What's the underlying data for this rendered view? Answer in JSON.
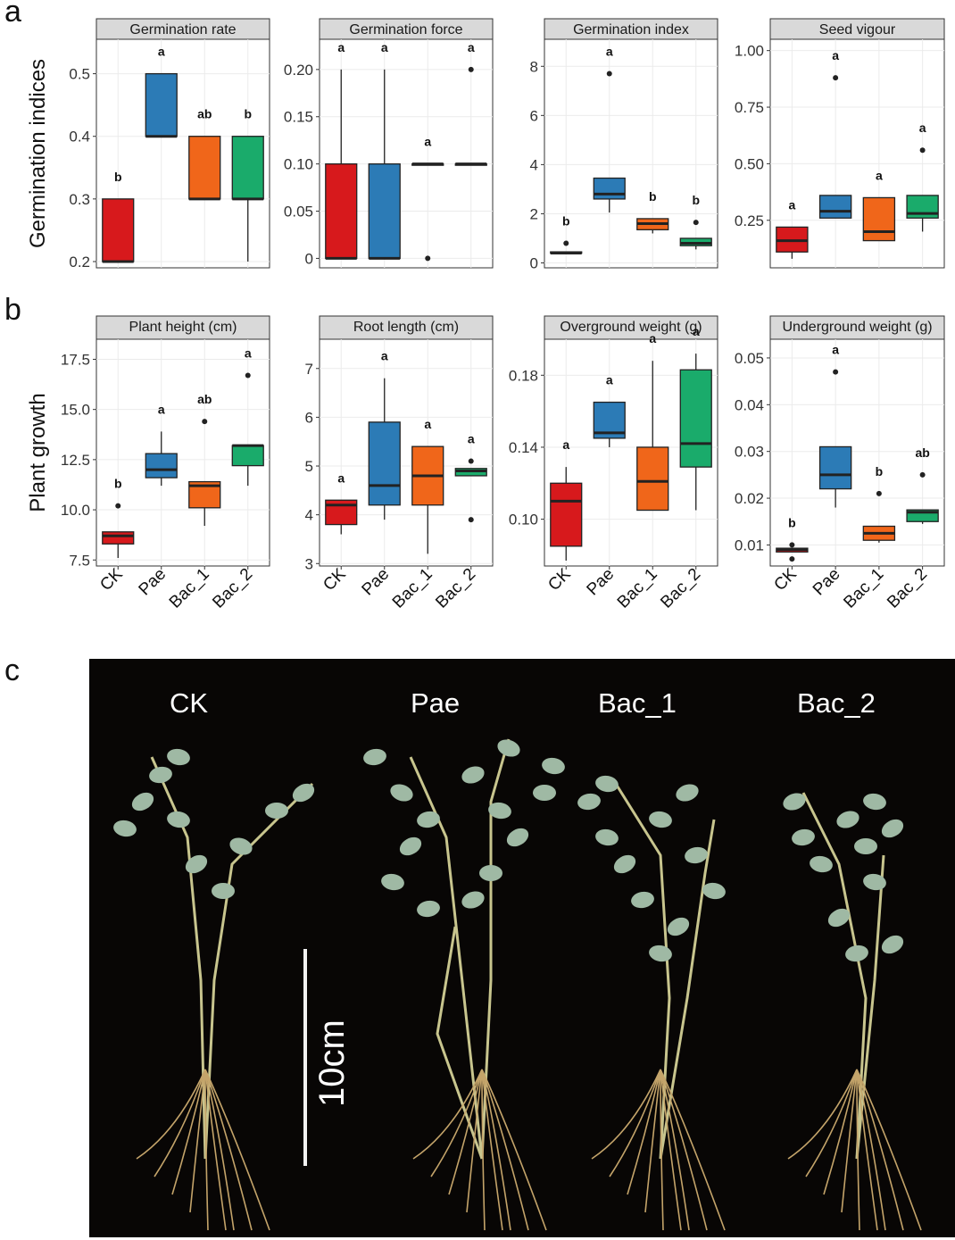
{
  "panels": {
    "a": "a",
    "b": "b",
    "c": "c"
  },
  "groups": [
    "CK",
    "Pae",
    "Bac_1",
    "Bac_2"
  ],
  "colors": {
    "CK": "#d7191c",
    "Pae": "#2c7bb6",
    "Bac_1": "#f0661a",
    "Bac_2": "#1aab6b",
    "strip": "#d9d9d9",
    "grid": "#ebebeb"
  },
  "row_labels": {
    "a": "Germination indices",
    "b": "Plant growth"
  },
  "chart_data": [
    {
      "type": "box",
      "title": "Germination rate",
      "row": "a",
      "ylim": [
        0.19,
        0.555
      ],
      "yticks": [
        0.2,
        0.3,
        0.4,
        0.5
      ],
      "ytick_labels": [
        "0.2",
        "0.3",
        "0.4",
        "0.5"
      ],
      "boxes": [
        {
          "q1": 0.2,
          "median": 0.2,
          "q3": 0.3,
          "whislo": 0.2,
          "whishi": 0.3,
          "outliers": [],
          "letter": "b"
        },
        {
          "q1": 0.4,
          "median": 0.4,
          "q3": 0.5,
          "whislo": 0.4,
          "whishi": 0.5,
          "outliers": [],
          "letter": "a"
        },
        {
          "q1": 0.3,
          "median": 0.3,
          "q3": 0.4,
          "whislo": 0.3,
          "whishi": 0.4,
          "outliers": [],
          "letter": "ab"
        },
        {
          "q1": 0.3,
          "median": 0.3,
          "q3": 0.4,
          "whislo": 0.2,
          "whishi": 0.4,
          "outliers": [],
          "letter": "b"
        }
      ]
    },
    {
      "type": "box",
      "title": "Germination force",
      "row": "a",
      "ylim": [
        -0.01,
        0.232
      ],
      "yticks": [
        0,
        0.05,
        0.1,
        0.15,
        0.2
      ],
      "ytick_labels": [
        "0",
        "0.05",
        "0.10",
        "0.15",
        "0.20"
      ],
      "boxes": [
        {
          "q1": 0,
          "median": 0,
          "q3": 0.1,
          "whislo": 0,
          "whishi": 0.2,
          "outliers": [],
          "letter": "a"
        },
        {
          "q1": 0,
          "median": 0,
          "q3": 0.1,
          "whislo": 0,
          "whishi": 0.2,
          "outliers": [],
          "letter": "a"
        },
        {
          "q1": 0.1,
          "median": 0.1,
          "q3": 0.1,
          "whislo": 0.1,
          "whishi": 0.1,
          "outliers": [
            0
          ],
          "letter": "a"
        },
        {
          "q1": 0.1,
          "median": 0.1,
          "q3": 0.1,
          "whislo": 0.1,
          "whishi": 0.1,
          "outliers": [
            0.2
          ],
          "letter": "a"
        }
      ]
    },
    {
      "type": "box",
      "title": "Germination index",
      "row": "a",
      "ylim": [
        -0.2,
        9.1
      ],
      "yticks": [
        0,
        2,
        4,
        6,
        8
      ],
      "ytick_labels": [
        "0",
        "2",
        "4",
        "6",
        "8"
      ],
      "boxes": [
        {
          "q1": 0.4,
          "median": 0.4,
          "q3": 0.45,
          "whislo": 0.4,
          "whishi": 0.45,
          "outliers": [
            0.8
          ],
          "letter": "b"
        },
        {
          "q1": 2.6,
          "median": 2.8,
          "q3": 3.45,
          "whislo": 2.05,
          "whishi": 3.45,
          "outliers": [
            7.7
          ],
          "letter": "a"
        },
        {
          "q1": 1.35,
          "median": 1.6,
          "q3": 1.8,
          "whislo": 1.2,
          "whishi": 1.8,
          "outliers": [],
          "letter": "b"
        },
        {
          "q1": 0.7,
          "median": 0.8,
          "q3": 1.0,
          "whislo": 0.55,
          "whishi": 1.0,
          "outliers": [
            1.65
          ],
          "letter": "b"
        }
      ]
    },
    {
      "type": "box",
      "title": "Seed vigour",
      "row": "a",
      "ylim": [
        0.04,
        1.05
      ],
      "yticks": [
        0.25,
        0.5,
        0.75,
        1.0
      ],
      "ytick_labels": [
        "0.25",
        "0.50",
        "0.75",
        "1.00"
      ],
      "boxes": [
        {
          "q1": 0.11,
          "median": 0.16,
          "q3": 0.22,
          "whislo": 0.08,
          "whishi": 0.22,
          "outliers": [],
          "letter": "a"
        },
        {
          "q1": 0.26,
          "median": 0.29,
          "q3": 0.36,
          "whislo": 0.26,
          "whishi": 0.36,
          "outliers": [
            0.88
          ],
          "letter": "a"
        },
        {
          "q1": 0.16,
          "median": 0.2,
          "q3": 0.35,
          "whislo": 0.16,
          "whishi": 0.35,
          "outliers": [],
          "letter": "a"
        },
        {
          "q1": 0.26,
          "median": 0.28,
          "q3": 0.36,
          "whislo": 0.2,
          "whishi": 0.36,
          "outliers": [
            0.56
          ],
          "letter": "a"
        }
      ]
    },
    {
      "type": "box",
      "title": "Plant height (cm)",
      "row": "b",
      "ylim": [
        7.2,
        18.5
      ],
      "yticks": [
        7.5,
        10,
        12.5,
        15,
        17.5
      ],
      "ytick_labels": [
        "7.5",
        "10.0",
        "12.5",
        "15.0",
        "17.5"
      ],
      "boxes": [
        {
          "q1": 8.3,
          "median": 8.7,
          "q3": 8.9,
          "whislo": 7.6,
          "whishi": 8.9,
          "outliers": [
            10.2
          ],
          "letter": "b"
        },
        {
          "q1": 11.6,
          "median": 12.0,
          "q3": 12.8,
          "whislo": 11.2,
          "whishi": 13.9,
          "outliers": [],
          "letter": "a"
        },
        {
          "q1": 10.1,
          "median": 11.2,
          "q3": 11.4,
          "whislo": 9.2,
          "whishi": 11.4,
          "outliers": [
            14.4
          ],
          "letter": "ab"
        },
        {
          "q1": 12.2,
          "median": 13.2,
          "q3": 13.2,
          "whislo": 11.2,
          "whishi": 13.2,
          "outliers": [
            16.7
          ],
          "letter": "a"
        }
      ]
    },
    {
      "type": "box",
      "title": "Root length (cm)",
      "row": "b",
      "ylim": [
        2.95,
        7.6
      ],
      "yticks": [
        3,
        4,
        5,
        6,
        7
      ],
      "ytick_labels": [
        "3",
        "4",
        "5",
        "6",
        "7"
      ],
      "boxes": [
        {
          "q1": 3.8,
          "median": 4.2,
          "q3": 4.3,
          "whislo": 3.6,
          "whishi": 4.3,
          "outliers": [],
          "letter": "a"
        },
        {
          "q1": 4.2,
          "median": 4.6,
          "q3": 5.9,
          "whislo": 3.9,
          "whishi": 6.8,
          "outliers": [],
          "letter": "a"
        },
        {
          "q1": 4.2,
          "median": 4.8,
          "q3": 5.4,
          "whislo": 3.2,
          "whishi": 5.4,
          "outliers": [],
          "letter": "a"
        },
        {
          "q1": 4.8,
          "median": 4.9,
          "q3": 4.95,
          "whislo": 4.8,
          "whishi": 4.95,
          "outliers": [
            5.1,
            3.9
          ],
          "letter": "a"
        }
      ]
    },
    {
      "type": "box",
      "title": "Overground weight (g)",
      "row": "b",
      "ylim": [
        0.074,
        0.2
      ],
      "yticks": [
        0.1,
        0.14,
        0.18
      ],
      "ytick_labels": [
        "0.10",
        "0.14",
        "0.18"
      ],
      "boxes": [
        {
          "q1": 0.085,
          "median": 0.11,
          "q3": 0.12,
          "whislo": 0.077,
          "whishi": 0.129,
          "outliers": [],
          "letter": "a"
        },
        {
          "q1": 0.145,
          "median": 0.148,
          "q3": 0.165,
          "whislo": 0.14,
          "whishi": 0.165,
          "outliers": [],
          "letter": "a"
        },
        {
          "q1": 0.105,
          "median": 0.121,
          "q3": 0.14,
          "whislo": 0.105,
          "whishi": 0.188,
          "outliers": [],
          "letter": "a"
        },
        {
          "q1": 0.129,
          "median": 0.142,
          "q3": 0.183,
          "whislo": 0.105,
          "whishi": 0.192,
          "outliers": [],
          "letter": "a"
        }
      ]
    },
    {
      "type": "box",
      "title": "Underground weight (g)",
      "row": "b",
      "ylim": [
        0.0055,
        0.054
      ],
      "yticks": [
        0.01,
        0.02,
        0.03,
        0.04,
        0.05
      ],
      "ytick_labels": [
        "0.01",
        "0.02",
        "0.03",
        "0.04",
        "0.05"
      ],
      "boxes": [
        {
          "q1": 0.0085,
          "median": 0.009,
          "q3": 0.0093,
          "whislo": 0.0085,
          "whishi": 0.0093,
          "outliers": [
            0.01,
            0.007
          ],
          "letter": "b"
        },
        {
          "q1": 0.022,
          "median": 0.025,
          "q3": 0.031,
          "whislo": 0.018,
          "whishi": 0.031,
          "outliers": [
            0.047
          ],
          "letter": "a"
        },
        {
          "q1": 0.011,
          "median": 0.0125,
          "q3": 0.014,
          "whislo": 0.0105,
          "whishi": 0.014,
          "outliers": [
            0.021
          ],
          "letter": "b"
        },
        {
          "q1": 0.015,
          "median": 0.017,
          "q3": 0.0175,
          "whislo": 0.0145,
          "whishi": 0.0175,
          "outliers": [
            0.025
          ],
          "letter": "ab"
        }
      ]
    }
  ],
  "photo": {
    "labels": [
      "CK",
      "Pae",
      "Bac_1",
      "Bac_2"
    ],
    "scale_label": "10cm",
    "leaf_color": "#9fb9a4",
    "stem_color": "#c8c58e",
    "root_color": "#c4a46a"
  }
}
